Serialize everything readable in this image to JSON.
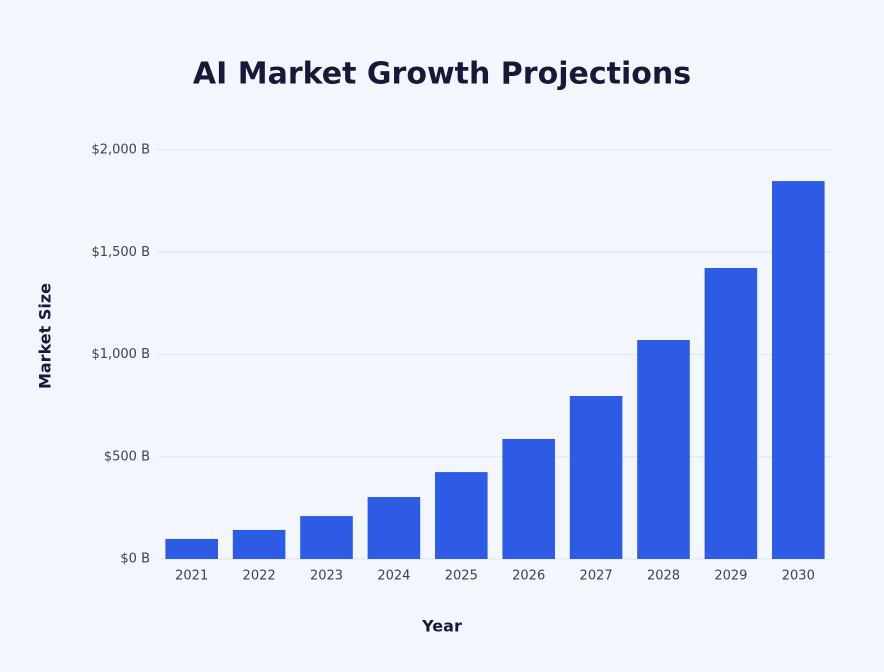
{
  "chart_data": {
    "type": "bar",
    "title": "AI Market Growth Projections",
    "x_label": "Year",
    "y_label": "Market Size",
    "categories": [
      "2021",
      "2022",
      "2023",
      "2024",
      "2025",
      "2026",
      "2027",
      "2028",
      "2029",
      "2030"
    ],
    "values": [
      98,
      142,
      210,
      303,
      425,
      587,
      797,
      1071,
      1423,
      1848
    ],
    "color": "#2d5be3",
    "ylim": [
      0,
      2000
    ],
    "yticks": [
      {
        "value": 0,
        "label": "$0 B"
      },
      {
        "value": 500,
        "label": "$500 B"
      },
      {
        "value": 1000,
        "label": "$1,000 B"
      },
      {
        "value": 1500,
        "label": "$1,500 B"
      },
      {
        "value": 2000,
        "label": "$2,000 B"
      }
    ],
    "grid": true
  }
}
